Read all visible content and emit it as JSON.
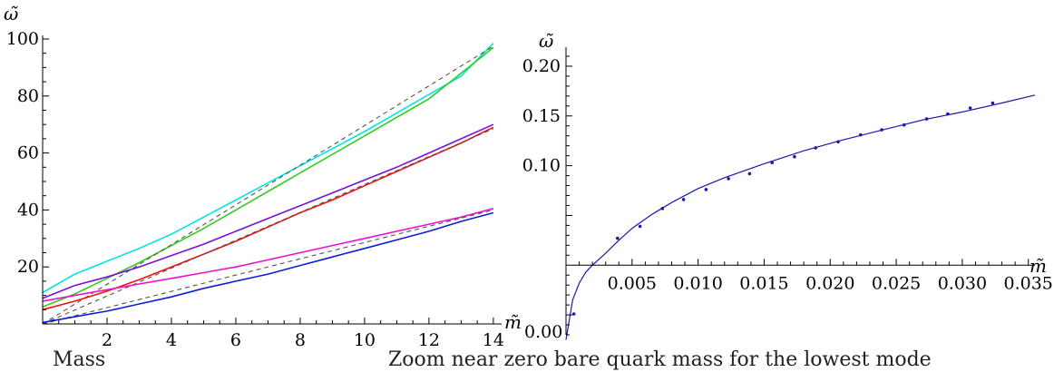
{
  "captions": {
    "left": "Mass",
    "right": "Zoom near zero bare quark mass for the lowest mode"
  },
  "chart_data": [
    {
      "type": "line",
      "xlabel": "m̃",
      "ylabel": "ω̃",
      "xlim": [
        0,
        14.2
      ],
      "ylim": [
        0,
        100
      ],
      "x_ticks": [
        "2",
        "4",
        "6",
        "8",
        "10",
        "12",
        "14"
      ],
      "y_ticks": [
        "20",
        "40",
        "60",
        "80",
        "100"
      ],
      "grid": false,
      "series": [
        {
          "color": "#00e5e5",
          "style": "solid",
          "x": [
            0,
            1,
            2,
            3,
            4,
            5,
            6,
            7,
            8,
            9,
            10,
            11,
            12,
            13,
            14
          ],
          "values": [
            11,
            17.5,
            22,
            26.5,
            31.5,
            37.5,
            43.5,
            49.5,
            55.5,
            61.5,
            67.5,
            74,
            80.5,
            87,
            98.5
          ]
        },
        {
          "color": "#33cc22",
          "style": "solid",
          "x": [
            0,
            1,
            2,
            3,
            4,
            5,
            6,
            7,
            8,
            9,
            10,
            11,
            12,
            13,
            14
          ],
          "values": [
            6,
            10.5,
            16,
            21.5,
            27.5,
            33.5,
            40,
            46.5,
            53,
            59.5,
            66,
            72.5,
            79,
            88,
            97
          ]
        },
        {
          "color": "#555555",
          "style": "dashed",
          "x": [
            0,
            14
          ],
          "values": [
            0,
            97.5
          ]
        },
        {
          "color": "#7711dd",
          "style": "solid",
          "x": [
            0,
            1,
            2,
            3,
            4,
            5,
            6,
            7,
            8,
            9,
            10,
            11,
            12,
            13,
            14
          ],
          "values": [
            9,
            13.5,
            16.5,
            20,
            24,
            28,
            32.5,
            37,
            41.5,
            46,
            50.5,
            55,
            60,
            65,
            70
          ]
        },
        {
          "color": "#ee1111",
          "style": "solid",
          "x": [
            0,
            1,
            2,
            3,
            4,
            5,
            6,
            7,
            8,
            9,
            10,
            11,
            12,
            13,
            14
          ],
          "values": [
            5,
            8,
            11.5,
            15.5,
            20,
            24.5,
            29,
            34,
            39,
            43.5,
            48.5,
            53.5,
            58.5,
            63.5,
            69
          ]
        },
        {
          "color": "#555555",
          "style": "dashed",
          "x": [
            0,
            14
          ],
          "values": [
            0,
            68.5
          ]
        },
        {
          "color": "#ee11cc",
          "style": "solid",
          "x": [
            0,
            1,
            2,
            3,
            4,
            5,
            6,
            7,
            8,
            9,
            10,
            11,
            12,
            13,
            14
          ],
          "values": [
            8,
            10,
            12,
            14,
            16,
            18,
            20,
            22.5,
            25,
            27.5,
            30,
            32.5,
            35,
            37.5,
            40.5
          ]
        },
        {
          "color": "#555555",
          "style": "dashed",
          "x": [
            0,
            14
          ],
          "values": [
            0,
            40
          ]
        },
        {
          "color": "#0a1fd6",
          "style": "solid",
          "x": [
            0,
            1,
            2,
            3,
            4,
            5,
            6,
            7,
            8,
            9,
            10,
            11,
            12,
            13,
            14
          ],
          "values": [
            0.5,
            2.5,
            4.5,
            7,
            9.5,
            12.5,
            15,
            17.5,
            20.5,
            23.5,
            26.5,
            29.5,
            32.5,
            36,
            39
          ]
        }
      ]
    },
    {
      "type": "scatter",
      "xlabel": "m̃",
      "ylabel": "ω̃",
      "xlim": [
        0,
        0.0355
      ],
      "ylim": [
        -0.07,
        0.21
      ],
      "x_ticks": [
        "0.005",
        "0.010",
        "0.015",
        "0.020",
        "0.025",
        "0.030",
        "0.035"
      ],
      "y_ticks": [
        "0.10",
        "0.15",
        "0.20"
      ],
      "origin_label": "0.00",
      "grid": false,
      "color": "#1a1aa8",
      "points": {
        "x": [
          0.0006,
          0.0039,
          0.0056,
          0.0073,
          0.0089,
          0.0106,
          0.0123,
          0.0139,
          0.0156,
          0.0173,
          0.0189,
          0.0206,
          0.0223,
          0.0239,
          0.0256,
          0.0273,
          0.0289,
          0.0306,
          0.0323
        ],
        "y": [
          -0.049,
          0.027,
          0.039,
          0.057,
          0.066,
          0.076,
          0.087,
          0.092,
          0.103,
          0.109,
          0.118,
          0.124,
          0.131,
          0.136,
          0.141,
          0.147,
          0.152,
          0.158,
          0.163
        ]
      },
      "fit_curve": {
        "x": [
          0,
          0.0005,
          0.001,
          0.0015,
          0.002,
          0.003,
          0.004,
          0.005,
          0.0065,
          0.008,
          0.01,
          0.012,
          0.015,
          0.018,
          0.021,
          0.024,
          0.027,
          0.03,
          0.033,
          0.0355
        ],
        "y": [
          -0.075,
          -0.035,
          -0.018,
          -0.007,
          0.0,
          0.012,
          0.025,
          0.037,
          0.051,
          0.063,
          0.077,
          0.088,
          0.102,
          0.115,
          0.126,
          0.136,
          0.146,
          0.154,
          0.163,
          0.171
        ]
      }
    }
  ]
}
